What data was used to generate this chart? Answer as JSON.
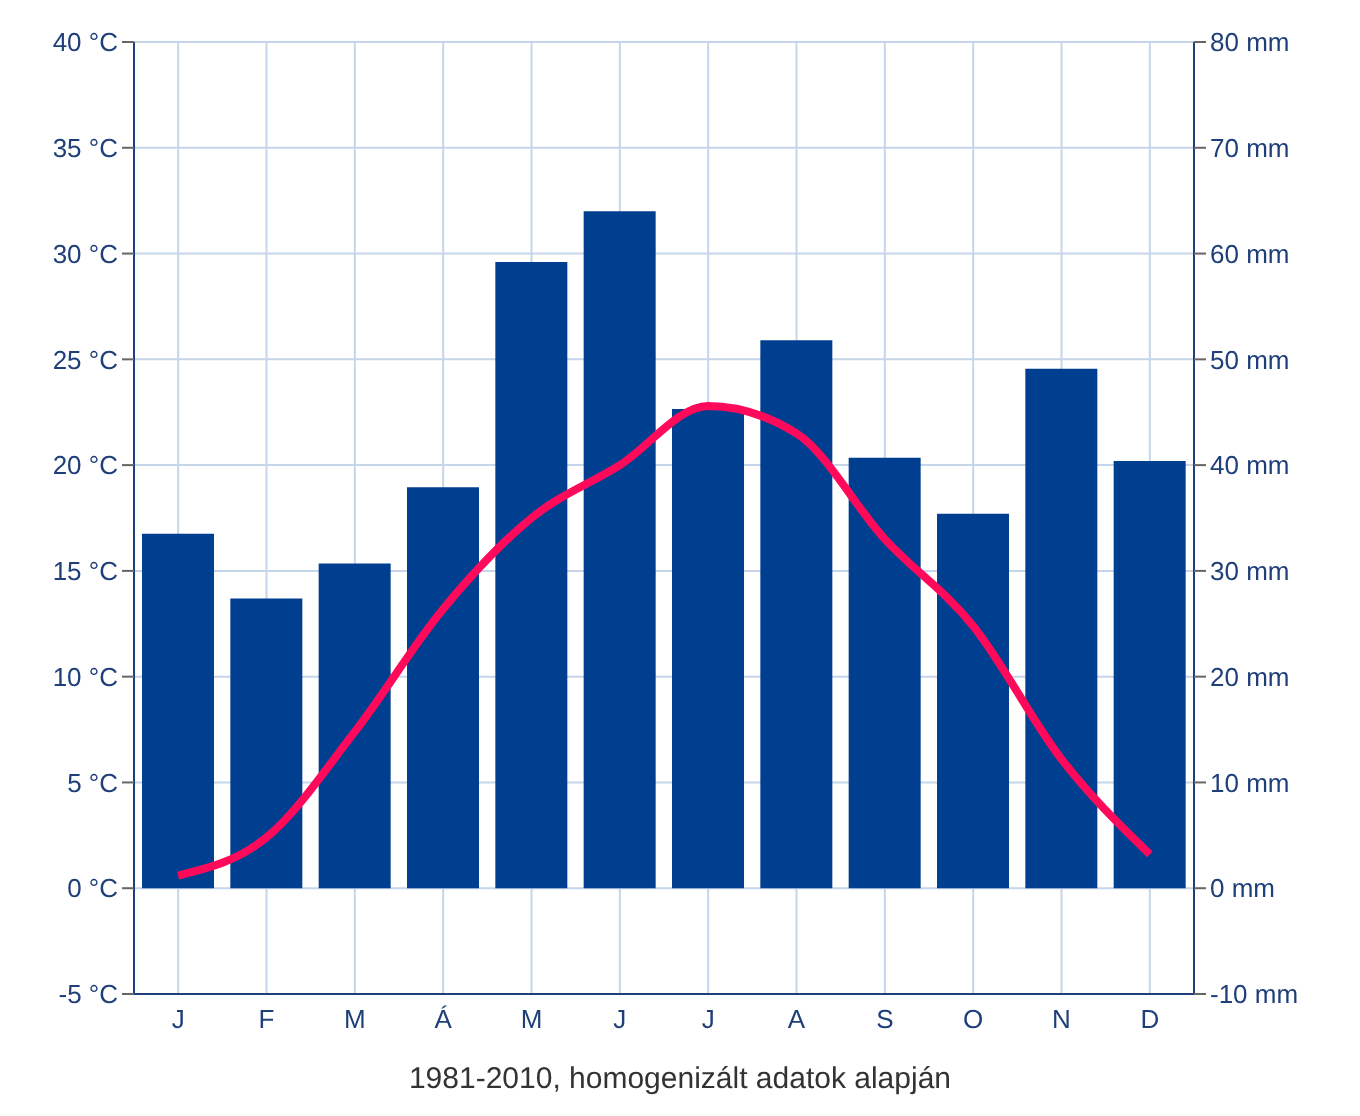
{
  "chart_data": {
    "type": "bar",
    "categories": [
      "J",
      "F",
      "M",
      "Á",
      "M",
      "J",
      "J",
      "A",
      "S",
      "O",
      "N",
      "D"
    ],
    "series": [
      {
        "axis": "y2",
        "color": "#003f8f",
        "values": [
          33.5,
          27.4,
          30.7,
          37.9,
          59.2,
          64,
          45.3,
          51.8,
          40.7,
          35.4,
          49.1,
          40.4
        ]
      },
      {
        "type": "line",
        "axis": "y",
        "color": "#ff0a5a",
        "values": [
          0.6,
          2.4,
          7.4,
          13.2,
          17.5,
          20.0,
          22.8,
          21.5,
          16.5,
          12.4,
          6.1,
          1.6
        ]
      }
    ],
    "ylim": [
      -5,
      40
    ],
    "yticks": [
      {
        "value": -5,
        "label": "-5 °C"
      },
      {
        "value": 0,
        "label": "0 °C"
      },
      {
        "value": 5,
        "label": "5 °C"
      },
      {
        "value": 10,
        "label": "10 °C"
      },
      {
        "value": 15,
        "label": "15 °C"
      },
      {
        "value": 20,
        "label": "20 °C"
      },
      {
        "value": 25,
        "label": "25 °C"
      },
      {
        "value": 30,
        "label": "30 °C"
      },
      {
        "value": 35,
        "label": "35 °C"
      },
      {
        "value": 40,
        "label": "40 °C"
      }
    ],
    "y2lim": [
      -10,
      80
    ],
    "y2ticks": [
      {
        "value": -10,
        "label": "-10 mm"
      },
      {
        "value": 0,
        "label": "0 mm"
      },
      {
        "value": 10,
        "label": "10 mm"
      },
      {
        "value": 20,
        "label": "20 mm"
      },
      {
        "value": 30,
        "label": "30 mm"
      },
      {
        "value": 40,
        "label": "40 mm"
      },
      {
        "value": 50,
        "label": "50 mm"
      },
      {
        "value": 60,
        "label": "60 mm"
      },
      {
        "value": 70,
        "label": "70 mm"
      },
      {
        "value": 80,
        "label": "80 mm"
      }
    ],
    "grid": true,
    "marker": "none",
    "annotations": [
      "1981-2010, homogenizált adatok alapján"
    ]
  }
}
